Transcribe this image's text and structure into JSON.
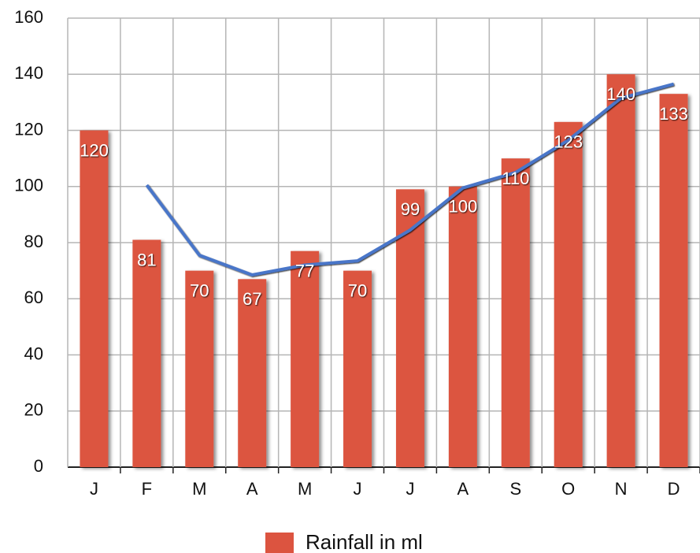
{
  "chart_data": {
    "type": "bar",
    "categories": [
      "J",
      "F",
      "M",
      "A",
      "M",
      "J",
      "J",
      "A",
      "S",
      "O",
      "N",
      "D"
    ],
    "series": [
      {
        "name": "Rainfall in ml",
        "color": "#dc5440",
        "values": [
          120,
          81,
          70,
          67,
          77,
          70,
          99,
          100,
          110,
          123,
          140,
          133
        ]
      }
    ],
    "trendline": {
      "type": "line",
      "color": "#4a76c9",
      "values": [
        null,
        100.5,
        75.5,
        68.5,
        72,
        73.5,
        84.5,
        99.5,
        105,
        116.5,
        131.5,
        136.5
      ]
    },
    "ylim": [
      0,
      160
    ],
    "yticks": [
      0,
      20,
      40,
      60,
      80,
      100,
      120,
      140,
      160
    ],
    "grid": true,
    "data_labels": true,
    "legend": "bottom"
  }
}
